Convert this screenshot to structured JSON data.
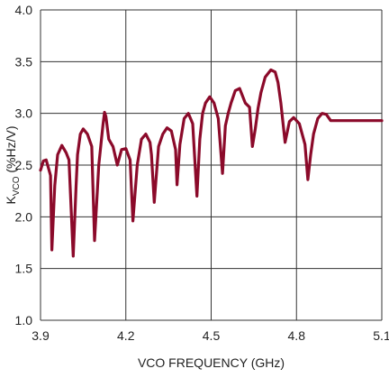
{
  "chart_data": {
    "type": "line",
    "title": "",
    "xlabel": "VCO FREQUENCY (GHz)",
    "ylabel": {
      "main": "K",
      "sub": "VCO",
      "unit": " (%Hz/V)"
    },
    "xlim": [
      3.9,
      5.1
    ],
    "ylim": [
      1.0,
      4.0
    ],
    "x_ticks": [
      3.9,
      4.2,
      4.5,
      4.8,
      5.1
    ],
    "x_tick_labels": [
      "3.9",
      "4.2",
      "4.5",
      "4.8",
      "5.1"
    ],
    "y_ticks": [
      1.0,
      1.5,
      2.0,
      2.5,
      3.0,
      3.5,
      4.0
    ],
    "y_tick_labels": [
      "1.0",
      "1.5",
      "2.0",
      "2.5",
      "3.0",
      "3.5",
      "4.0"
    ],
    "grid": true,
    "legend": "none",
    "series": [
      {
        "color": "#8b0a2a",
        "x": [
          3.9,
          3.91,
          3.92,
          3.93,
          3.935,
          3.94,
          3.95,
          3.96,
          3.975,
          3.99,
          4.0,
          4.015,
          4.025,
          4.03,
          4.04,
          4.05,
          4.065,
          4.08,
          4.09,
          4.105,
          4.12,
          4.125,
          4.13,
          4.14,
          4.155,
          4.17,
          4.185,
          4.2,
          4.215,
          4.225,
          4.24,
          4.255,
          4.27,
          4.285,
          4.29,
          4.3,
          4.315,
          4.33,
          4.345,
          4.36,
          4.375,
          4.38,
          4.39,
          4.405,
          4.42,
          4.435,
          4.45,
          4.46,
          4.47,
          4.48,
          4.495,
          4.51,
          4.525,
          4.54,
          4.55,
          4.56,
          4.57,
          4.585,
          4.6,
          4.62,
          4.635,
          4.645,
          4.655,
          4.665,
          4.675,
          4.69,
          4.71,
          4.725,
          4.735,
          4.745,
          4.76,
          4.775,
          4.79,
          4.81,
          4.83,
          4.84,
          4.85,
          4.86,
          4.875,
          4.89,
          4.905,
          4.92,
          4.935,
          4.95,
          4.96,
          4.97,
          4.985,
          5.0,
          5.015,
          5.03,
          5.04,
          5.05,
          5.065,
          5.08,
          5.09,
          5.1
        ],
        "y": [
          2.45,
          2.54,
          2.55,
          2.45,
          2.4,
          1.68,
          2.3,
          2.6,
          2.69,
          2.62,
          2.55,
          1.62,
          2.3,
          2.6,
          2.8,
          2.85,
          2.8,
          2.68,
          1.77,
          2.5,
          2.9,
          3.01,
          2.97,
          2.75,
          2.68,
          2.5,
          2.65,
          2.66,
          2.55,
          1.96,
          2.5,
          2.75,
          2.8,
          2.72,
          2.6,
          2.14,
          2.68,
          2.8,
          2.86,
          2.83,
          2.65,
          2.31,
          2.7,
          2.95,
          3.0,
          2.9,
          2.2,
          2.75,
          3.0,
          3.1,
          3.16,
          3.1,
          2.95,
          2.42,
          2.88,
          3.0,
          3.1,
          3.22,
          3.24,
          3.1,
          3.06,
          2.68,
          2.85,
          3.05,
          3.2,
          3.35,
          3.42,
          3.4,
          3.3,
          3.1,
          2.72,
          2.92,
          2.96,
          2.9,
          2.7,
          2.36,
          2.6,
          2.8,
          2.95,
          3.0,
          2.99,
          2.93,
          2.93,
          2.93,
          2.93,
          2.93,
          2.93,
          2.93,
          2.93,
          2.93,
          2.93,
          2.93,
          2.93,
          2.93,
          2.93,
          2.93
        ]
      }
    ]
  }
}
